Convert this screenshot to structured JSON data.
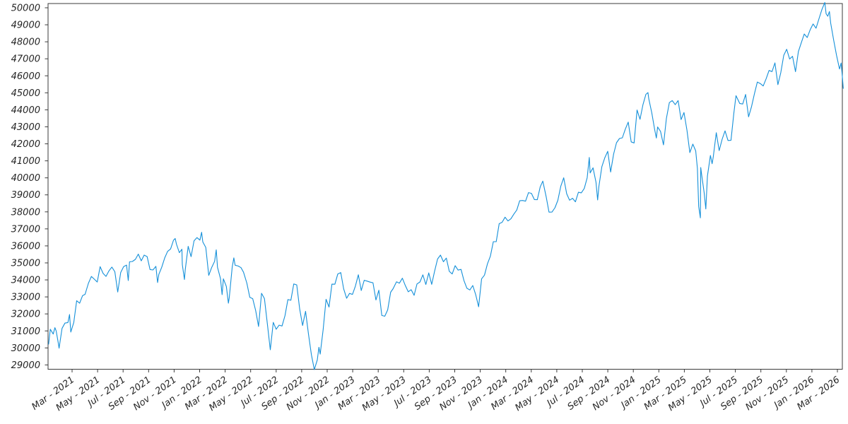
{
  "chart_data": {
    "type": "line",
    "title": "",
    "description": "Daily index price line chart, single blue series, no grid, no legend",
    "line_color": "#1590d9",
    "axis_color": "#3b3b3b",
    "label_color": "#262626",
    "legend": "none",
    "grid": "off",
    "ylim": [
      28740,
      50250
    ],
    "y_tick_labels": [
      "29000",
      "30000",
      "31000",
      "32000",
      "33000",
      "34000",
      "35000",
      "36000",
      "37000",
      "38000",
      "39000",
      "40000",
      "41000",
      "42000",
      "43000",
      "44000",
      "45000",
      "46000",
      "47000",
      "48000",
      "49000",
      "50000"
    ],
    "x_tick_labels": [
      "Mar - 2021",
      "May - 2021",
      "Jul - 2021",
      "Sep - 2021",
      "Nov - 2021",
      "Jan - 2022",
      "Mar - 2022",
      "May - 2022",
      "Jul - 2022",
      "Sep - 2022",
      "Nov - 2022",
      "Jan - 2023",
      "Mar - 2023",
      "May - 2023",
      "Jul - 2023",
      "Sep - 2023",
      "Nov - 2023",
      "Jan - 2024",
      "Mar - 2024",
      "May - 2024",
      "Jul - 2024",
      "Sep - 2024",
      "Nov - 2024",
      "Jan - 2025",
      "Mar - 2025",
      "May - 2025",
      "Jul - 2025",
      "Sep - 2025",
      "Nov - 2025",
      "Jan - 2026",
      "Mar - 2026"
    ],
    "x_axis": {
      "unit": "day_offset_from_2021-01-01",
      "first_tick_day": 59,
      "days_between_first_and_last_tick": 1826,
      "tick_interval_months": 2
    },
    "points": [
      [
        3,
        30223
      ],
      [
        7,
        31098
      ],
      [
        14,
        30814
      ],
      [
        18,
        31188
      ],
      [
        21,
        30997
      ],
      [
        26,
        30303
      ],
      [
        28,
        29983
      ],
      [
        35,
        31148
      ],
      [
        42,
        31458
      ],
      [
        49,
        31494
      ],
      [
        53,
        31962
      ],
      [
        56,
        30932
      ],
      [
        63,
        31496
      ],
      [
        70,
        32779
      ],
      [
        77,
        32628
      ],
      [
        84,
        33073
      ],
      [
        90,
        33153
      ],
      [
        98,
        33801
      ],
      [
        105,
        34201
      ],
      [
        112,
        34043
      ],
      [
        119,
        33875
      ],
      [
        126,
        34778
      ],
      [
        133,
        34382
      ],
      [
        140,
        34208
      ],
      [
        147,
        34529
      ],
      [
        154,
        34756
      ],
      [
        161,
        34480
      ],
      [
        168,
        33290
      ],
      [
        175,
        34434
      ],
      [
        182,
        34786
      ],
      [
        189,
        34870
      ],
      [
        193,
        33962
      ],
      [
        196,
        35062
      ],
      [
        203,
        35085
      ],
      [
        210,
        35209
      ],
      [
        217,
        35515
      ],
      [
        224,
        35120
      ],
      [
        231,
        35456
      ],
      [
        238,
        35369
      ],
      [
        245,
        34608
      ],
      [
        252,
        34585
      ],
      [
        259,
        34798
      ],
      [
        263,
        33844
      ],
      [
        266,
        34326
      ],
      [
        273,
        34746
      ],
      [
        280,
        35295
      ],
      [
        287,
        35677
      ],
      [
        294,
        35820
      ],
      [
        301,
        36328
      ],
      [
        305,
        36432
      ],
      [
        308,
        36100
      ],
      [
        315,
        35602
      ],
      [
        321,
        35804
      ],
      [
        322,
        34899
      ],
      [
        327,
        34022
      ],
      [
        329,
        34580
      ],
      [
        336,
        35971
      ],
      [
        343,
        35365
      ],
      [
        350,
        36302
      ],
      [
        357,
        36488
      ],
      [
        364,
        36338
      ],
      [
        368,
        36799
      ],
      [
        371,
        36232
      ],
      [
        378,
        35912
      ],
      [
        385,
        34265
      ],
      [
        392,
        34725
      ],
      [
        399,
        35090
      ],
      [
        403,
        35768
      ],
      [
        406,
        34738
      ],
      [
        413,
        34079
      ],
      [
        417,
        33131
      ],
      [
        420,
        34059
      ],
      [
        427,
        33615
      ],
      [
        432,
        32632
      ],
      [
        434,
        32944
      ],
      [
        441,
        34755
      ],
      [
        445,
        35294
      ],
      [
        448,
        34861
      ],
      [
        455,
        34818
      ],
      [
        462,
        34721
      ],
      [
        468,
        34451
      ],
      [
        476,
        33811
      ],
      [
        483,
        32977
      ],
      [
        490,
        32899
      ],
      [
        497,
        32197
      ],
      [
        504,
        31262
      ],
      [
        511,
        33213
      ],
      [
        518,
        32900
      ],
      [
        525,
        31393
      ],
      [
        532,
        29889
      ],
      [
        539,
        31500
      ],
      [
        546,
        31097
      ],
      [
        553,
        31338
      ],
      [
        560,
        31288
      ],
      [
        567,
        31899
      ],
      [
        574,
        32845
      ],
      [
        581,
        32803
      ],
      [
        588,
        33761
      ],
      [
        595,
        33707
      ],
      [
        602,
        32283
      ],
      [
        609,
        31318
      ],
      [
        616,
        32152
      ],
      [
        623,
        30822
      ],
      [
        630,
        29590
      ],
      [
        637,
        28726
      ],
      [
        644,
        29297
      ],
      [
        648,
        30039
      ],
      [
        651,
        29635
      ],
      [
        658,
        31083
      ],
      [
        665,
        32862
      ],
      [
        672,
        32403
      ],
      [
        679,
        33748
      ],
      [
        686,
        33746
      ],
      [
        693,
        34347
      ],
      [
        700,
        34430
      ],
      [
        707,
        33476
      ],
      [
        714,
        32920
      ],
      [
        721,
        33204
      ],
      [
        728,
        33147
      ],
      [
        735,
        33631
      ],
      [
        742,
        34303
      ],
      [
        749,
        33375
      ],
      [
        756,
        33978
      ],
      [
        763,
        33926
      ],
      [
        770,
        33869
      ],
      [
        777,
        33827
      ],
      [
        784,
        32817
      ],
      [
        791,
        33391
      ],
      [
        798,
        31910
      ],
      [
        805,
        31862
      ],
      [
        812,
        32238
      ],
      [
        819,
        33274
      ],
      [
        825,
        33485
      ],
      [
        833,
        33886
      ],
      [
        840,
        33809
      ],
      [
        847,
        34098
      ],
      [
        854,
        33674
      ],
      [
        861,
        33301
      ],
      [
        868,
        33427
      ],
      [
        875,
        33093
      ],
      [
        882,
        33763
      ],
      [
        889,
        33877
      ],
      [
        896,
        34299
      ],
      [
        903,
        33727
      ],
      [
        910,
        34408
      ],
      [
        917,
        33735
      ],
      [
        924,
        34509
      ],
      [
        931,
        35228
      ],
      [
        938,
        35459
      ],
      [
        945,
        35066
      ],
      [
        952,
        35281
      ],
      [
        959,
        34501
      ],
      [
        966,
        34347
      ],
      [
        973,
        34838
      ],
      [
        980,
        34577
      ],
      [
        987,
        34618
      ],
      [
        994,
        33964
      ],
      [
        1001,
        33508
      ],
      [
        1008,
        33408
      ],
      [
        1015,
        33670
      ],
      [
        1022,
        33127
      ],
      [
        1029,
        32418
      ],
      [
        1036,
        34061
      ],
      [
        1043,
        34283
      ],
      [
        1050,
        34947
      ],
      [
        1057,
        35390
      ],
      [
        1064,
        36246
      ],
      [
        1071,
        36248
      ],
      [
        1078,
        37305
      ],
      [
        1085,
        37386
      ],
      [
        1092,
        37690
      ],
      [
        1099,
        37466
      ],
      [
        1106,
        37593
      ],
      [
        1113,
        37864
      ],
      [
        1120,
        38109
      ],
      [
        1127,
        38654
      ],
      [
        1134,
        38671
      ],
      [
        1141,
        38628
      ],
      [
        1148,
        39132
      ],
      [
        1155,
        39087
      ],
      [
        1162,
        38723
      ],
      [
        1169,
        38714
      ],
      [
        1176,
        39476
      ],
      [
        1182,
        39807
      ],
      [
        1190,
        38904
      ],
      [
        1197,
        37983
      ],
      [
        1204,
        37986
      ],
      [
        1211,
        38240
      ],
      [
        1218,
        38676
      ],
      [
        1225,
        39513
      ],
      [
        1232,
        40004
      ],
      [
        1239,
        39069
      ],
      [
        1246,
        38686
      ],
      [
        1253,
        38799
      ],
      [
        1260,
        38589
      ],
      [
        1267,
        39150
      ],
      [
        1274,
        39119
      ],
      [
        1281,
        39376
      ],
      [
        1288,
        40001
      ],
      [
        1293,
        41198
      ],
      [
        1295,
        40288
      ],
      [
        1302,
        40589
      ],
      [
        1309,
        39737
      ],
      [
        1313,
        38703
      ],
      [
        1316,
        39498
      ],
      [
        1323,
        40660
      ],
      [
        1330,
        41175
      ],
      [
        1337,
        41563
      ],
      [
        1344,
        40345
      ],
      [
        1351,
        41394
      ],
      [
        1358,
        42063
      ],
      [
        1365,
        42313
      ],
      [
        1372,
        42353
      ],
      [
        1379,
        42864
      ],
      [
        1386,
        43276
      ],
      [
        1393,
        42114
      ],
      [
        1400,
        42052
      ],
      [
        1407,
        43989
      ],
      [
        1414,
        43445
      ],
      [
        1421,
        44297
      ],
      [
        1428,
        44911
      ],
      [
        1433,
        45014
      ],
      [
        1435,
        44643
      ],
      [
        1442,
        43828
      ],
      [
        1449,
        42840
      ],
      [
        1453,
        42342
      ],
      [
        1456,
        42992
      ],
      [
        1463,
        42732
      ],
      [
        1470,
        41938
      ],
      [
        1477,
        43488
      ],
      [
        1484,
        44424
      ],
      [
        1491,
        44545
      ],
      [
        1498,
        44303
      ],
      [
        1505,
        44546
      ],
      [
        1512,
        43428
      ],
      [
        1519,
        43841
      ],
      [
        1526,
        42802
      ],
      [
        1533,
        41488
      ],
      [
        1540,
        41985
      ],
      [
        1547,
        41584
      ],
      [
        1551,
        40546
      ],
      [
        1554,
        38315
      ],
      [
        1558,
        37646
      ],
      [
        1559,
        40608
      ],
      [
        1561,
        40213
      ],
      [
        1567,
        39142
      ],
      [
        1571,
        38170
      ],
      [
        1575,
        40114
      ],
      [
        1582,
        41317
      ],
      [
        1586,
        40829
      ],
      [
        1589,
        41249
      ],
      [
        1596,
        42655
      ],
      [
        1603,
        41603
      ],
      [
        1610,
        42270
      ],
      [
        1617,
        42763
      ],
      [
        1624,
        42198
      ],
      [
        1631,
        42207
      ],
      [
        1638,
        43819
      ],
      [
        1643,
        44829
      ],
      [
        1652,
        44372
      ],
      [
        1659,
        44342
      ],
      [
        1666,
        44902
      ],
      [
        1673,
        43589
      ],
      [
        1680,
        44176
      ],
      [
        1687,
        44946
      ],
      [
        1694,
        45632
      ],
      [
        1701,
        45545
      ],
      [
        1708,
        45401
      ],
      [
        1715,
        45834
      ],
      [
        1722,
        46315
      ],
      [
        1729,
        46247
      ],
      [
        1736,
        46758
      ],
      [
        1743,
        45480
      ],
      [
        1750,
        46191
      ],
      [
        1757,
        47207
      ],
      [
        1764,
        47563
      ],
      [
        1771,
        46987
      ],
      [
        1778,
        47147
      ],
      [
        1785,
        46245
      ],
      [
        1792,
        47427
      ],
      [
        1799,
        47954
      ],
      [
        1806,
        48460
      ],
      [
        1813,
        48250
      ],
      [
        1820,
        48700
      ],
      [
        1827,
        49050
      ],
      [
        1834,
        48800
      ],
      [
        1841,
        49350
      ],
      [
        1848,
        49900
      ],
      [
        1855,
        50310
      ],
      [
        1858,
        49650
      ],
      [
        1862,
        49500
      ],
      [
        1866,
        49780
      ],
      [
        1869,
        49100
      ],
      [
        1876,
        48100
      ],
      [
        1883,
        47200
      ],
      [
        1890,
        46400
      ],
      [
        1894,
        46750
      ],
      [
        1897,
        45900
      ],
      [
        1899,
        45260
      ]
    ]
  }
}
